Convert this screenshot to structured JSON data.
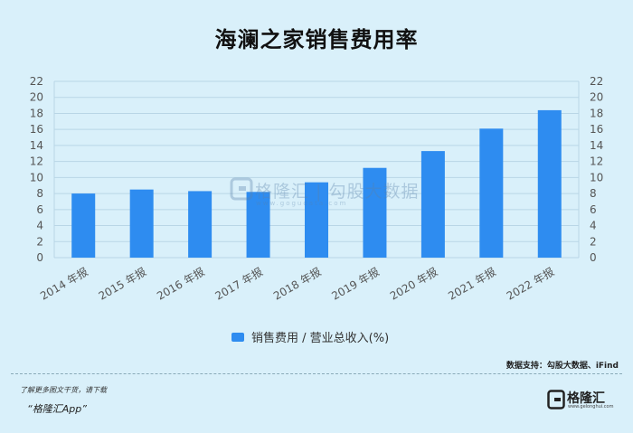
{
  "title": "海澜之家销售费用率",
  "source": "数据支持：勾股大数据、iFind",
  "footer": {
    "note": "了解更多图文干货，请下载",
    "app": "“格隆汇App”"
  },
  "logo": {
    "name": "格隆汇",
    "sub": "www.gelonghui.com"
  },
  "watermark": {
    "text": "格隆汇 | 勾股大数据",
    "sub": "www.gogudata.com"
  },
  "colors": {
    "bar": "#2e8cf0",
    "grid": "#b9d6e6",
    "axis_text": "#555555",
    "background": "#d9f0fa"
  },
  "chart_data": {
    "type": "bar",
    "categories": [
      "2014 年报",
      "2015 年报",
      "2016 年报",
      "2017 年报",
      "2018 年报",
      "2019 年报",
      "2020 年报",
      "2021 年报",
      "2022 年报"
    ],
    "series": [
      {
        "name": "销售费用 / 营业总收入(%)",
        "values": [
          8.0,
          8.5,
          8.3,
          8.2,
          9.4,
          11.2,
          13.3,
          16.1,
          18.4
        ]
      }
    ],
    "ylim": [
      0,
      22
    ],
    "yticks": [
      0,
      2,
      4,
      6,
      8,
      10,
      12,
      14,
      16,
      18,
      20,
      22
    ],
    "y2ticks": [
      0,
      2,
      4,
      6,
      8,
      10,
      12,
      14,
      16,
      18,
      20,
      22
    ],
    "grid": true,
    "legend_position": "bottom"
  }
}
